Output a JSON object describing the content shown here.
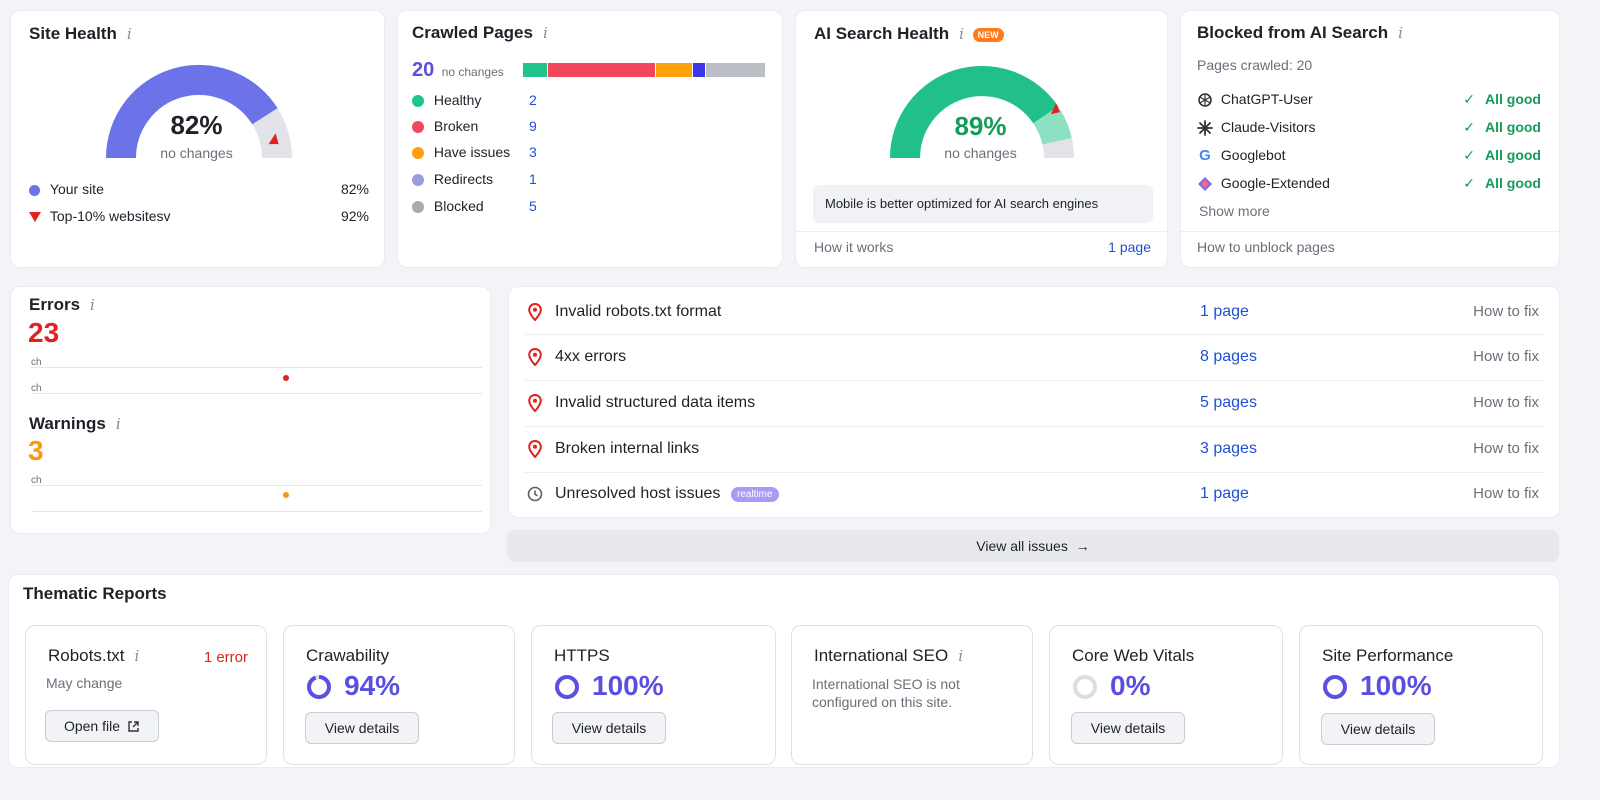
{
  "site_health": {
    "title": "Site Health",
    "value_text": "82%",
    "value": 82,
    "sub": "no changes",
    "legend": [
      {
        "label": "Your site",
        "value": "82%"
      },
      {
        "label": "Top-10% websitesv",
        "value": "92%"
      }
    ],
    "top10_value": 92,
    "colors": {
      "fill": "#6c73e8",
      "track": "#e2e3e8",
      "marker": "#e0231e"
    }
  },
  "crawled_pages": {
    "title": "Crawled Pages",
    "total": "20",
    "sub": "no changes",
    "rows": [
      {
        "label": "Healthy",
        "value": "2",
        "color": "#1ec48a"
      },
      {
        "label": "Broken",
        "value": "9",
        "color": "#f2475a"
      },
      {
        "label": "Have issues",
        "value": "3",
        "color": "#ffa10a"
      },
      {
        "label": "Redirects",
        "value": "1",
        "color": "#9b9be0"
      },
      {
        "label": "Blocked",
        "value": "5",
        "color": "#a9abb2"
      }
    ],
    "bar": [
      {
        "value": 2,
        "color": "#1ec48a"
      },
      {
        "value": 9,
        "color": "#f2475a"
      },
      {
        "value": 3,
        "color": "#ffa10a"
      },
      {
        "value": 1,
        "color": "#3f36e8"
      },
      {
        "value": 5,
        "color": "#bcbec5"
      }
    ]
  },
  "ai_search_health": {
    "title": "AI Search Health",
    "badge": "NEW",
    "value_text": "89%",
    "value": 89,
    "sub": "no changes",
    "note": "Mobile is better optimized for AI search engines",
    "footer_left": "How it works",
    "footer_right": "1 page",
    "colors": {
      "fill": "#21c08a",
      "light": "#8ee0c2",
      "track": "#e2e3e8",
      "marker": "#e0231e"
    }
  },
  "blocked_ai": {
    "title": "Blocked from AI Search",
    "sub": "Pages crawled: 20",
    "bots": [
      {
        "name": "ChatGPT-User",
        "status": "All good",
        "icon": "openai-icon"
      },
      {
        "name": "Claude-Visitors",
        "status": "All good",
        "icon": "claude-icon"
      },
      {
        "name": "Googlebot",
        "status": "All good",
        "icon": "google-icon"
      },
      {
        "name": "Google-Extended",
        "status": "All good",
        "icon": "gemini-icon"
      }
    ],
    "show_more": "Show more",
    "footer": "How to unblock pages"
  },
  "errors": {
    "title": "Errors",
    "value": "23",
    "label1": "ch",
    "label2": "ch"
  },
  "warnings": {
    "title": "Warnings",
    "value": "3",
    "label1": "ch"
  },
  "issues": {
    "rows": [
      {
        "name": "Invalid robots.txt format",
        "pages": "1 page",
        "fix": "How to fix",
        "icon": "pin-icon",
        "badge": ""
      },
      {
        "name": "4xx errors",
        "pages": "8 pages",
        "fix": "How to fix",
        "icon": "pin-icon",
        "badge": ""
      },
      {
        "name": "Invalid structured data items",
        "pages": "5 pages",
        "fix": "How to fix",
        "icon": "pin-icon",
        "badge": ""
      },
      {
        "name": "Broken internal links",
        "pages": "3 pages",
        "fix": "How to fix",
        "icon": "pin-icon",
        "badge": ""
      },
      {
        "name": "Unresolved host issues",
        "pages": "1 page",
        "fix": "How to fix",
        "icon": "clock-icon",
        "badge": "realtime"
      }
    ],
    "view_all": "View all issues",
    "view_all_arrow": "→"
  },
  "thematic": {
    "title": "Thematic Reports",
    "robots": {
      "name": "Robots.txt",
      "status": "1 error",
      "sub": "May change",
      "button": "Open file"
    },
    "crawlability": {
      "name": "Crawability",
      "pct": "94%",
      "value": 94,
      "button": "View details"
    },
    "https": {
      "name": "HTTPS",
      "pct": "100%",
      "value": 100,
      "button": "View details"
    },
    "intl": {
      "name": "International SEO",
      "sub": "International SEO is not configured on this site."
    },
    "cwv": {
      "name": "Core Web Vitals",
      "pct": "0%",
      "value": 0,
      "button": "View details"
    },
    "perf": {
      "name": "Site Performance",
      "pct": "100%",
      "value": 100,
      "button": "View details"
    }
  },
  "colors": {
    "accent": "#5b4fe0",
    "link": "#1e4fd8",
    "good": "#159b5b",
    "error": "#e0231e",
    "warning": "#f59a12"
  }
}
